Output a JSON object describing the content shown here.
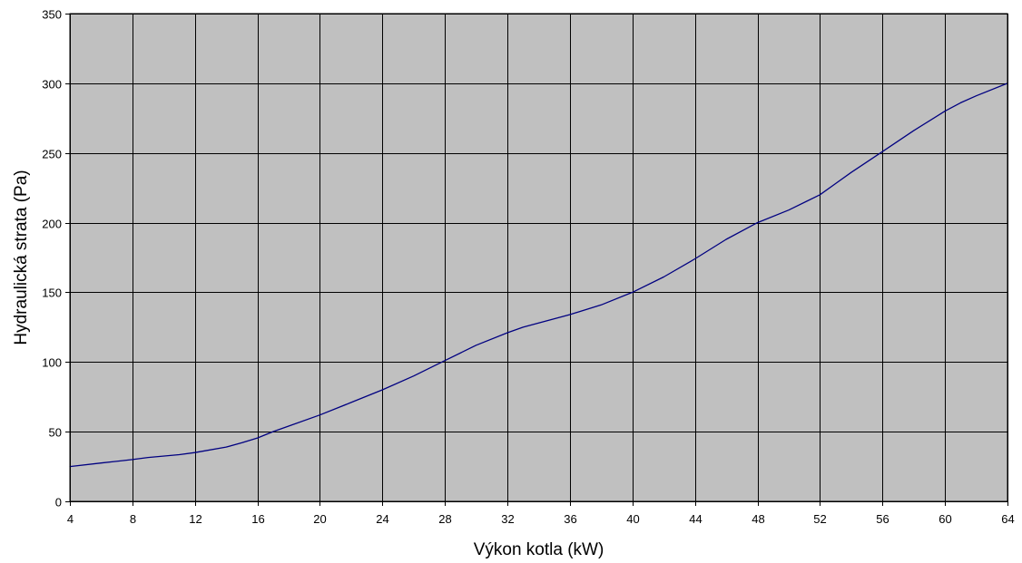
{
  "chart_data": {
    "type": "line",
    "title": "",
    "xlabel": "Výkon kotla (kW)",
    "ylabel": "Hydraulická strata (Pa)",
    "xlim": [
      4,
      64
    ],
    "ylim": [
      0,
      350
    ],
    "x_ticks": [
      4,
      8,
      12,
      16,
      20,
      24,
      28,
      32,
      36,
      40,
      44,
      48,
      52,
      56,
      60,
      64
    ],
    "y_ticks": [
      0,
      50,
      100,
      150,
      200,
      250,
      300,
      350
    ],
    "grid": true,
    "legend": "none",
    "plot_background": "#c0c0c0",
    "series": [
      {
        "color": "#000080",
        "x": [
          4,
          6,
          8,
          9,
          11,
          12,
          14,
          15,
          16,
          17,
          18,
          20,
          22,
          24,
          26,
          28,
          30,
          32,
          33,
          34,
          36,
          38,
          40,
          42,
          44,
          46,
          48,
          50,
          52,
          53,
          54,
          56,
          58,
          60,
          61,
          62,
          64
        ],
        "y": [
          25,
          27.5,
          30,
          31.5,
          33.5,
          35,
          39,
          42,
          45.5,
          50,
          54,
          62,
          71,
          80,
          90,
          101,
          112,
          121,
          125,
          128,
          134,
          141,
          150,
          161,
          174,
          188,
          200,
          209,
          220,
          228,
          236,
          251,
          266,
          280,
          286,
          291,
          300
        ]
      }
    ]
  }
}
